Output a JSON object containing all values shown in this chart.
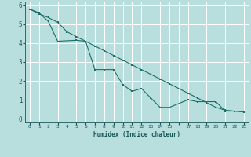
{
  "xlabel": "Humidex (Indice chaleur)",
  "background_color": "#b8dede",
  "grid_color": "#e8f8f8",
  "line_color": "#1a7068",
  "x_ticks": [
    0,
    1,
    2,
    3,
    4,
    5,
    6,
    7,
    8,
    9,
    10,
    11,
    12,
    13,
    14,
    15,
    16,
    17,
    18,
    19,
    20,
    21,
    22,
    23
  ],
  "x_tick_labels": [
    "0",
    "1",
    "2",
    "3",
    "4",
    "5",
    "6",
    "7",
    "8",
    "9",
    "10",
    "11",
    "12",
    "13",
    "14",
    "15",
    "",
    "17",
    "18",
    "19",
    "20",
    "21",
    "22",
    "23"
  ],
  "ylim": [
    -0.2,
    6.2
  ],
  "xlim": [
    -0.5,
    23.5
  ],
  "line1_x": [
    0,
    1,
    2,
    3,
    4,
    5,
    6,
    7,
    8,
    9,
    10,
    11,
    12,
    13,
    14,
    15,
    17,
    18,
    19,
    20,
    21,
    22,
    23
  ],
  "line1_y": [
    5.8,
    5.55,
    5.35,
    5.1,
    4.6,
    4.35,
    4.1,
    3.85,
    3.6,
    3.35,
    3.1,
    2.85,
    2.6,
    2.35,
    2.1,
    1.85,
    1.35,
    1.1,
    0.85,
    0.6,
    0.45,
    0.4,
    0.35
  ],
  "line2_x": [
    0,
    1,
    2,
    3,
    5,
    6,
    7,
    8,
    9,
    10,
    11,
    12,
    13,
    14,
    15,
    17,
    18,
    19,
    20,
    21,
    22,
    23
  ],
  "line2_y": [
    5.8,
    5.6,
    5.15,
    4.1,
    4.15,
    4.1,
    2.6,
    2.6,
    2.6,
    1.8,
    1.45,
    1.6,
    1.1,
    0.6,
    0.6,
    1.0,
    0.9,
    0.9,
    0.9,
    0.4,
    0.4,
    0.4
  ]
}
